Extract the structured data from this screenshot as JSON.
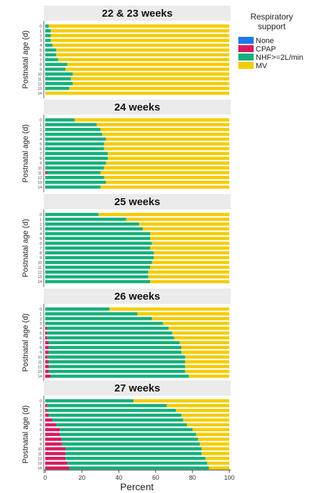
{
  "chart_data": {
    "type": "bar",
    "orientation": "horizontal",
    "stacked": true,
    "x_axis_label": "Percent",
    "x_ticks": [
      "0",
      "20",
      "40",
      "60",
      "80",
      "100"
    ],
    "xlim": [
      0,
      100
    ],
    "y_axis_label": "Postnatal age (d)",
    "y_categories": [
      "0",
      "1",
      "2",
      "3",
      "4",
      "5",
      "6",
      "7",
      "8",
      "9",
      "10",
      "11",
      "12",
      "13",
      "14"
    ],
    "legend": {
      "title": "Respiratory support",
      "items": [
        {
          "name": "None",
          "color": "#1f78e8"
        },
        {
          "name": "CPAP",
          "color": "#d81b60"
        },
        {
          "name": "NHF>=2L/min",
          "color": "#16b07a"
        },
        {
          "name": "MV",
          "color": "#f5cc00"
        }
      ]
    },
    "panels": [
      {
        "title": "22 & 23 weeks",
        "none": [
          0,
          0,
          0,
          0,
          0,
          0,
          0,
          0,
          0,
          0,
          0,
          0,
          0,
          0,
          0
        ],
        "cpap": [
          0,
          0,
          0,
          0,
          0,
          0,
          0,
          0,
          0,
          0,
          0,
          0,
          0,
          0,
          0
        ],
        "nhf": [
          2,
          3,
          3,
          3,
          4,
          6,
          6,
          7,
          12,
          11,
          15,
          14,
          15,
          13,
          0
        ]
      },
      {
        "title": "24 weeks",
        "none": [
          0,
          0,
          0,
          0,
          0,
          0,
          0,
          0,
          0,
          0,
          0,
          0,
          0,
          0,
          0
        ],
        "cpap": [
          0,
          0,
          0,
          0,
          0,
          0,
          0,
          0,
          0,
          0,
          0,
          1,
          0,
          0,
          0
        ],
        "nhf": [
          16,
          28,
          30,
          31,
          33,
          32,
          32,
          34,
          34,
          33,
          32,
          29,
          32,
          33,
          30
        ]
      },
      {
        "title": "25 weeks",
        "none": [
          0,
          0,
          0,
          0,
          0,
          0,
          0,
          0,
          0,
          0,
          0,
          0,
          0,
          0,
          0
        ],
        "cpap": [
          0,
          0,
          0,
          0,
          0,
          0,
          0,
          0,
          0,
          0,
          0,
          0,
          0,
          0,
          0
        ],
        "nhf": [
          29,
          44,
          51,
          53,
          57,
          57,
          58,
          57,
          59,
          59,
          58,
          57,
          56,
          56,
          57
        ]
      },
      {
        "title": "26 weeks",
        "none": [
          0,
          0,
          0,
          0,
          0,
          0,
          0,
          0,
          0,
          0,
          0,
          0,
          0,
          0,
          0
        ],
        "cpap": [
          0,
          0,
          0,
          0,
          1,
          1,
          1,
          2,
          2,
          2,
          1,
          2,
          2,
          2,
          3
        ],
        "nhf": [
          35,
          50,
          58,
          64,
          66,
          68,
          69,
          71,
          72,
          72,
          75,
          74,
          74,
          74,
          75
        ]
      },
      {
        "title": "27 weeks",
        "none": [
          0,
          0,
          0,
          0,
          0,
          0,
          0,
          0,
          0,
          0,
          0,
          0,
          0,
          0,
          0
        ],
        "cpap": [
          0,
          1,
          1,
          2,
          4,
          6,
          8,
          8,
          9,
          9,
          11,
          11,
          11,
          12,
          13
        ],
        "nhf": [
          48,
          65,
          70,
          72,
          71,
          71,
          72,
          74,
          74,
          75,
          74,
          74,
          76,
          76,
          76
        ]
      }
    ]
  }
}
